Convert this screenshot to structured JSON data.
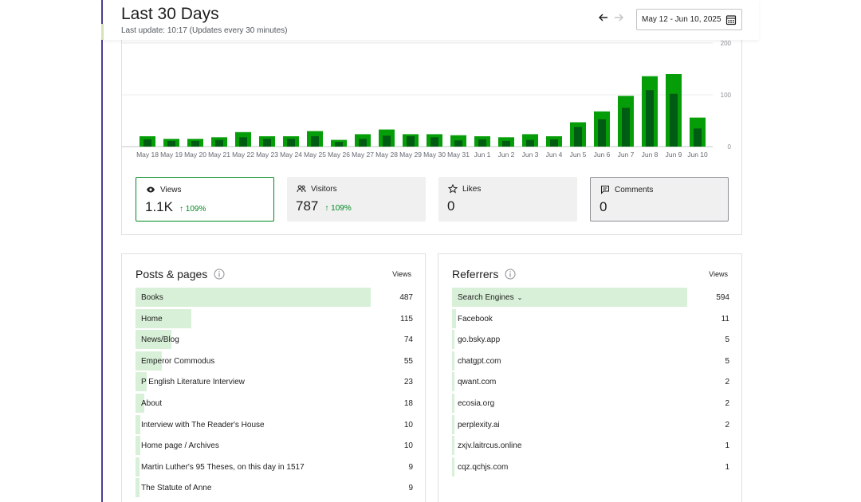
{
  "header": {
    "title": "Last 30 Days",
    "last_update": "Last update: 10:17 (Updates every 30 minutes)",
    "date_range": "May 12 - Jun 10, 2025"
  },
  "chart_data": {
    "type": "bar",
    "categories": [
      "May 18",
      "May 19",
      "May 20",
      "May 21",
      "May 22",
      "May 23",
      "May 24",
      "May 25",
      "May 26",
      "May 27",
      "May 28",
      "May 29",
      "May 30",
      "May 31",
      "Jun 1",
      "Jun 2",
      "Jun 3",
      "Jun 4",
      "Jun 5",
      "Jun 6",
      "Jun 7",
      "Jun 8",
      "Jun 9",
      "Jun 10"
    ],
    "series": [
      {
        "name": "Views",
        "values": [
          20,
          15,
          15,
          18,
          28,
          20,
          20,
          30,
          13,
          24,
          33,
          24,
          24,
          22,
          20,
          18,
          24,
          20,
          47,
          68,
          98,
          136,
          140,
          56
        ],
        "color": "#069e08"
      },
      {
        "name": "Visitors",
        "values": [
          14,
          11,
          11,
          13,
          18,
          15,
          15,
          20,
          9,
          15,
          21,
          20,
          18,
          12,
          14,
          11,
          13,
          14,
          38,
          53,
          75,
          109,
          102,
          35
        ],
        "color": "#005c12"
      }
    ],
    "y_ticks": [
      "200",
      "100",
      "0"
    ],
    "ylim": [
      0,
      200
    ],
    "grid": true
  },
  "stats": {
    "views": {
      "label": "Views",
      "value": "1.1K",
      "delta": "109%"
    },
    "visitors": {
      "label": "Visitors",
      "value": "787",
      "delta": "109%"
    },
    "likes": {
      "label": "Likes",
      "value": "0"
    },
    "comments": {
      "label": "Comments",
      "value": "0"
    }
  },
  "posts": {
    "title": "Posts & pages",
    "column": "Views",
    "rows": [
      {
        "name": "Books",
        "count": "487"
      },
      {
        "name": "Home",
        "count": "115"
      },
      {
        "name": "News/Blog",
        "count": "74"
      },
      {
        "name": "Emperor Commodus",
        "count": "55"
      },
      {
        "name": "P English Literature Interview",
        "count": "23"
      },
      {
        "name": "About",
        "count": "18"
      },
      {
        "name": "Interview with The Reader's House",
        "count": "10"
      },
      {
        "name": "Home page / Archives",
        "count": "10"
      },
      {
        "name": "Martin Luther's 95 Theses, on this day in 1517",
        "count": "9"
      },
      {
        "name": "The Statute of Anne",
        "count": "9"
      }
    ]
  },
  "referrers": {
    "title": "Referrers",
    "column": "Views",
    "rows": [
      {
        "name": "Search Engines",
        "count": "594",
        "expandable": true
      },
      {
        "name": "Facebook",
        "count": "11"
      },
      {
        "name": "go.bsky.app",
        "count": "5"
      },
      {
        "name": "chatgpt.com",
        "count": "5"
      },
      {
        "name": "qwant.com",
        "count": "2"
      },
      {
        "name": "ecosia.org",
        "count": "2"
      },
      {
        "name": "perplexity.ai",
        "count": "2"
      },
      {
        "name": "zxjv.laitrcus.online",
        "count": "1"
      },
      {
        "name": "cqz.qchjs.com",
        "count": "1"
      }
    ]
  },
  "icons": {
    "back": "arrow-left-icon",
    "forward": "arrow-right-icon",
    "calendar": "calendar-icon",
    "views": "eye-icon",
    "visitors": "people-icon",
    "likes": "star-icon",
    "comments": "comment-icon",
    "info": "info-icon"
  }
}
